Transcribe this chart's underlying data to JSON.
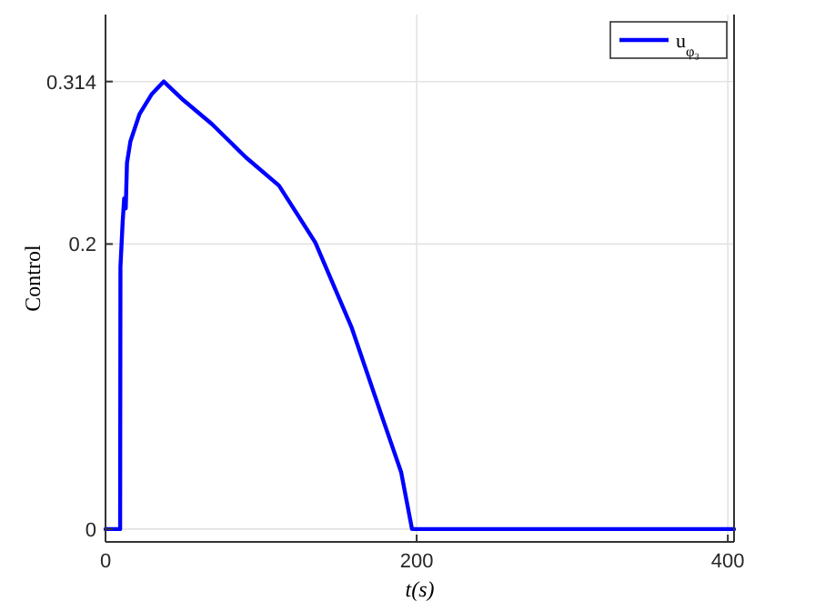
{
  "chart_data": {
    "type": "line",
    "xlabel": "t(s)",
    "ylabel": "Control",
    "x": [
      0,
      9.4,
      9.6,
      11,
      12,
      13,
      13.8,
      16,
      21.8,
      29.6,
      37.4,
      50,
      68.6,
      90,
      111.5,
      134.9,
      158,
      178,
      190,
      197,
      250,
      300,
      350,
      404
    ],
    "series": [
      {
        "name": "u$_{φ₃}$",
        "color": "#0000ff",
        "values": [
          0,
          0,
          0.184,
          0.215,
          0.232,
          0.225,
          0.257,
          0.272,
          0.291,
          0.305,
          0.314,
          0.301,
          0.284,
          0.261,
          0.241,
          0.201,
          0.142,
          0.078,
          0.04,
          0,
          0,
          0,
          0,
          0
        ]
      }
    ],
    "xlim": [
      0,
      404
    ],
    "ylim": [
      -0.009,
      0.361
    ],
    "xticks": [
      0,
      200,
      400
    ],
    "yticks": [
      0,
      0.2,
      0.314
    ],
    "grid": true,
    "legend": "top right",
    "marker": "none",
    "line_style": "solid"
  }
}
